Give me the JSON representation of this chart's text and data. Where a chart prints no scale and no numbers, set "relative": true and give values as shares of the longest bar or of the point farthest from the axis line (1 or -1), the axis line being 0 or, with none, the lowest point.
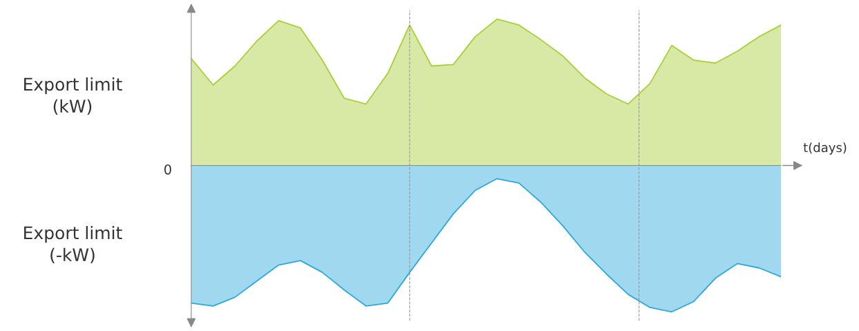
{
  "chart_data": {
    "type": "area",
    "relative": true,
    "xlabel": "t(days)",
    "annotations": [
      "Export limit\n(kW)",
      "0",
      "Export limit\n(-kW)"
    ],
    "categories": [
      null,
      null,
      null,
      null,
      null,
      null,
      null,
      null,
      null,
      null,
      null,
      null,
      null,
      null,
      null,
      null,
      null,
      null,
      null,
      null,
      null,
      null,
      null,
      null,
      null,
      null,
      null,
      null
    ],
    "series": [
      {
        "color": "#a8cf3a",
        "values": [
          0.73,
          0.55,
          0.68,
          0.85,
          0.99,
          0.94,
          0.72,
          0.46,
          0.42,
          0.63,
          0.96,
          0.68,
          0.69,
          0.88,
          1.0,
          0.96,
          0.86,
          0.75,
          0.6,
          0.49,
          0.42,
          0.56,
          0.82,
          0.72,
          0.7,
          0.78,
          0.88,
          0.96
        ]
      },
      {
        "color": "#2aa9dc",
        "values": [
          -0.94,
          -0.96,
          -0.9,
          -0.79,
          -0.68,
          -0.65,
          -0.73,
          -0.85,
          -0.96,
          -0.94,
          -0.73,
          -0.53,
          -0.33,
          -0.17,
          -0.09,
          -0.12,
          -0.25,
          -0.41,
          -0.59,
          -0.74,
          -0.88,
          -0.97,
          -1.0,
          -0.93,
          -0.77,
          -0.67,
          -0.7,
          -0.76
        ]
      }
    ],
    "grid": false,
    "legend": false
  }
}
